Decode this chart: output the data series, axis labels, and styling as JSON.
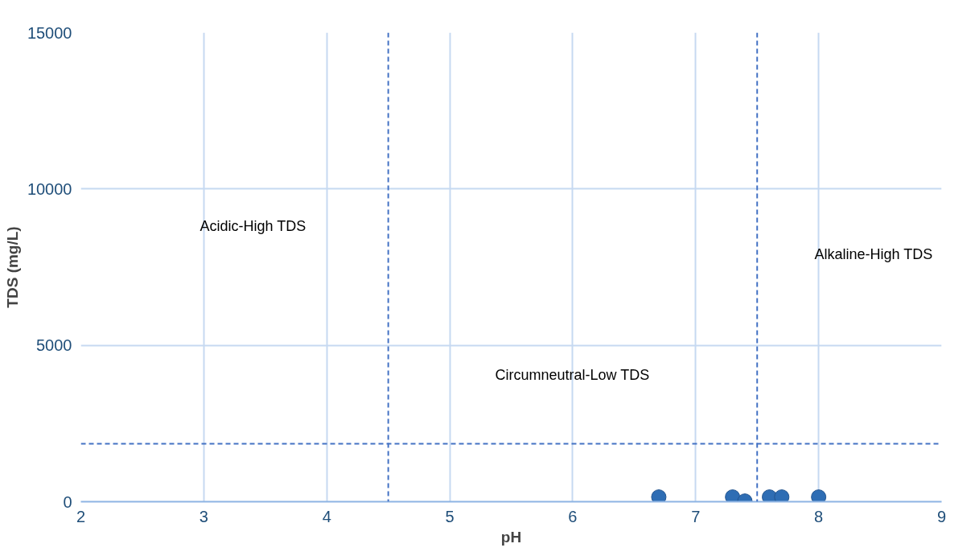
{
  "chart_data": {
    "type": "scatter",
    "xlabel": "pH",
    "ylabel": "TDS (mg/L)",
    "x": [
      6.7,
      7.3,
      7.4,
      7.6,
      7.7,
      8.0
    ],
    "series": [
      {
        "color": "#2e6db4",
        "values": [
          150,
          150,
          20,
          150,
          150,
          150
        ]
      }
    ],
    "xlim": [
      2,
      9
    ],
    "xticks": [
      2,
      3,
      4,
      5,
      6,
      7,
      8,
      9
    ],
    "ylim": [
      0,
      15000
    ],
    "yticks": [
      0,
      5000,
      10000,
      15000
    ],
    "grid": true,
    "marker": "circle",
    "ref_lines": [
      {
        "axis": "x",
        "value": 4.5,
        "color": "#4472c4",
        "line_style": "dashed"
      },
      {
        "axis": "x",
        "value": 7.5,
        "color": "#4472c4",
        "line_style": "dashed"
      },
      {
        "axis": "y",
        "value": 1850,
        "color": "#4472c4",
        "line_style": "dashed"
      }
    ],
    "annotations": [
      "Acidic-High TDS",
      "Circumneutral-Low TDS",
      "Alkaline-High TDS"
    ]
  }
}
